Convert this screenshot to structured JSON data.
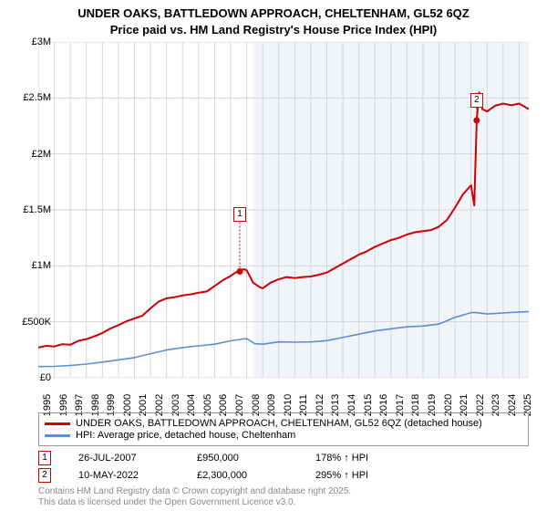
{
  "title": {
    "line1": "UNDER OAKS, BATTLEDOWN APPROACH, CHELTENHAM, GL52 6QZ",
    "line2": "Price paid vs. HM Land Registry's House Price Index (HPI)",
    "fontsize": 13,
    "fontweight": "bold",
    "color": "#000000"
  },
  "chart": {
    "type": "line",
    "background_color": "#ffffff",
    "shaded_region": {
      "x_start": 2008.4,
      "x_end": 2025.6,
      "fill": "#f1f4fa"
    },
    "xlim": [
      1995,
      2025.6
    ],
    "ylim": [
      0,
      3000000
    ],
    "y_ticks": [
      {
        "v": 0,
        "label": "£0"
      },
      {
        "v": 500000,
        "label": "£500K"
      },
      {
        "v": 1000000,
        "label": "£1M"
      },
      {
        "v": 1500000,
        "label": "£1.5M"
      },
      {
        "v": 2000000,
        "label": "£2M"
      },
      {
        "v": 2500000,
        "label": "£2.5M"
      },
      {
        "v": 3000000,
        "label": "£3M"
      }
    ],
    "x_ticks": [
      1995,
      1996,
      1997,
      1998,
      1999,
      2000,
      2001,
      2002,
      2003,
      2004,
      2005,
      2006,
      2007,
      2008,
      2009,
      2010,
      2011,
      2012,
      2013,
      2014,
      2015,
      2016,
      2017,
      2018,
      2019,
      2020,
      2021,
      2022,
      2023,
      2024,
      2025
    ],
    "grid_color": "#d6d6d6",
    "axis_color": "#000000",
    "series": [
      {
        "name": "UNDER OAKS, BATTLEDOWN APPROACH, CHELTENHAM, GL52 6QZ (detached house)",
        "color": "#cc0000",
        "line_width": 2,
        "data": [
          [
            1995,
            270000
          ],
          [
            1995.5,
            285000
          ],
          [
            1996,
            280000
          ],
          [
            1996.5,
            300000
          ],
          [
            1997,
            295000
          ],
          [
            1997.5,
            330000
          ],
          [
            1998,
            345000
          ],
          [
            1998.5,
            370000
          ],
          [
            1999,
            400000
          ],
          [
            1999.5,
            440000
          ],
          [
            2000,
            470000
          ],
          [
            2000.5,
            505000
          ],
          [
            2001,
            530000
          ],
          [
            2001.5,
            555000
          ],
          [
            2002,
            620000
          ],
          [
            2002.5,
            680000
          ],
          [
            2003,
            710000
          ],
          [
            2003.5,
            720000
          ],
          [
            2004,
            735000
          ],
          [
            2004.5,
            745000
          ],
          [
            2005,
            760000
          ],
          [
            2005.5,
            770000
          ],
          [
            2006,
            820000
          ],
          [
            2006.5,
            870000
          ],
          [
            2007,
            910000
          ],
          [
            2007.3,
            940000
          ],
          [
            2007.57,
            950000
          ],
          [
            2007.8,
            970000
          ],
          [
            2008,
            960000
          ],
          [
            2008.4,
            850000
          ],
          [
            2008.8,
            810000
          ],
          [
            2009,
            800000
          ],
          [
            2009.5,
            850000
          ],
          [
            2010,
            880000
          ],
          [
            2010.5,
            900000
          ],
          [
            2011,
            890000
          ],
          [
            2011.5,
            900000
          ],
          [
            2012,
            905000
          ],
          [
            2012.5,
            920000
          ],
          [
            2013,
            940000
          ],
          [
            2013.5,
            980000
          ],
          [
            2014,
            1020000
          ],
          [
            2014.5,
            1060000
          ],
          [
            2015,
            1100000
          ],
          [
            2015.5,
            1130000
          ],
          [
            2016,
            1170000
          ],
          [
            2016.5,
            1200000
          ],
          [
            2017,
            1230000
          ],
          [
            2017.5,
            1250000
          ],
          [
            2018,
            1280000
          ],
          [
            2018.5,
            1300000
          ],
          [
            2019,
            1310000
          ],
          [
            2019.5,
            1320000
          ],
          [
            2020,
            1350000
          ],
          [
            2020.5,
            1410000
          ],
          [
            2021,
            1520000
          ],
          [
            2021.5,
            1640000
          ],
          [
            2022,
            1720000
          ],
          [
            2022.2,
            1540000
          ],
          [
            2022.35,
            2300000
          ],
          [
            2022.5,
            2550000
          ],
          [
            2022.7,
            2400000
          ],
          [
            2023,
            2380000
          ],
          [
            2023.5,
            2430000
          ],
          [
            2024,
            2450000
          ],
          [
            2024.5,
            2435000
          ],
          [
            2025,
            2450000
          ],
          [
            2025.6,
            2400000
          ]
        ]
      },
      {
        "name": "HPI: Average price, detached house, Cheltenham",
        "color": "#5b8fd6",
        "line_width": 1.6,
        "data": [
          [
            1995,
            100000
          ],
          [
            1996,
            102000
          ],
          [
            1997,
            110000
          ],
          [
            1998,
            122000
          ],
          [
            1999,
            140000
          ],
          [
            2000,
            160000
          ],
          [
            2001,
            180000
          ],
          [
            2002,
            215000
          ],
          [
            2003,
            248000
          ],
          [
            2004,
            270000
          ],
          [
            2005,
            285000
          ],
          [
            2006,
            300000
          ],
          [
            2007,
            330000
          ],
          [
            2007.57,
            342000
          ],
          [
            2008,
            350000
          ],
          [
            2008.5,
            305000
          ],
          [
            2009,
            300000
          ],
          [
            2010,
            320000
          ],
          [
            2011,
            318000
          ],
          [
            2012,
            320000
          ],
          [
            2013,
            332000
          ],
          [
            2014,
            360000
          ],
          [
            2015,
            390000
          ],
          [
            2016,
            418000
          ],
          [
            2017,
            438000
          ],
          [
            2018,
            455000
          ],
          [
            2019,
            462000
          ],
          [
            2020,
            480000
          ],
          [
            2021,
            540000
          ],
          [
            2022,
            582000
          ],
          [
            2022.35,
            582000
          ],
          [
            2023,
            570000
          ],
          [
            2024,
            580000
          ],
          [
            2025,
            588000
          ],
          [
            2025.6,
            590000
          ]
        ]
      }
    ],
    "markers": [
      {
        "id": "1",
        "x": 2007.57,
        "y": 950000,
        "border_color": "#cc0000",
        "label_y_offset": -70
      },
      {
        "id": "2",
        "x": 2022.35,
        "y": 2300000,
        "border_color": "#cc0000",
        "label_y_offset": -30
      }
    ]
  },
  "legend": {
    "border_color": "#999999",
    "items": [
      {
        "color": "#cc0000",
        "label": "UNDER OAKS, BATTLEDOWN APPROACH, CHELTENHAM, GL52 6QZ (detached house)"
      },
      {
        "color": "#5b8fd6",
        "label": "HPI: Average price, detached house, Cheltenham"
      }
    ]
  },
  "sale_points": [
    {
      "id": "1",
      "border_color": "#cc0000",
      "date": "26-JUL-2007",
      "price": "£950,000",
      "hpi": "178% ↑ HPI"
    },
    {
      "id": "2",
      "border_color": "#cc0000",
      "date": "10-MAY-2022",
      "price": "£2,300,000",
      "hpi": "295% ↑ HPI"
    }
  ],
  "footer": {
    "line1": "Contains HM Land Registry data © Crown copyright and database right 2025.",
    "line2": "This data is licensed under the Open Government Licence v3.0.",
    "color": "#888888"
  }
}
